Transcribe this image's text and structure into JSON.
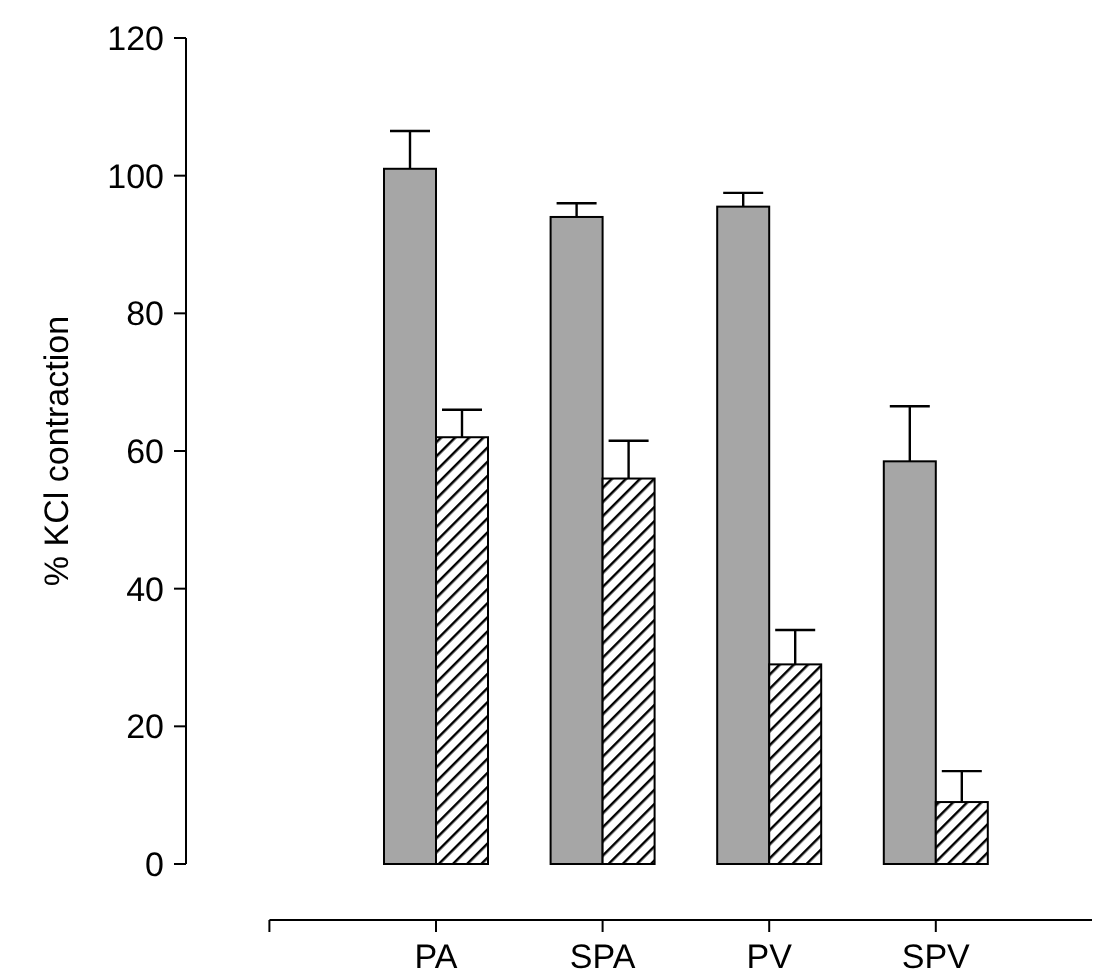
{
  "chart_data": {
    "type": "bar",
    "ylabel": "% KCl contraction",
    "categories": [
      "PA",
      "SPA",
      "PV",
      "SPV"
    ],
    "series": [
      {
        "color": "#a6a6a6",
        "values": [
          101,
          94,
          95.5,
          58.5
        ],
        "errors": [
          5.5,
          2,
          2,
          8
        ]
      },
      {
        "type": "bar",
        "color": "#000000",
        "values": [
          62,
          56,
          29,
          9
        ],
        "errors": [
          4,
          5.5,
          5,
          4.5
        ]
      }
    ],
    "ylim": [
      0,
      120
    ],
    "yticks": [
      0,
      20,
      40,
      60,
      80,
      100,
      120
    ],
    "grid": false
  }
}
